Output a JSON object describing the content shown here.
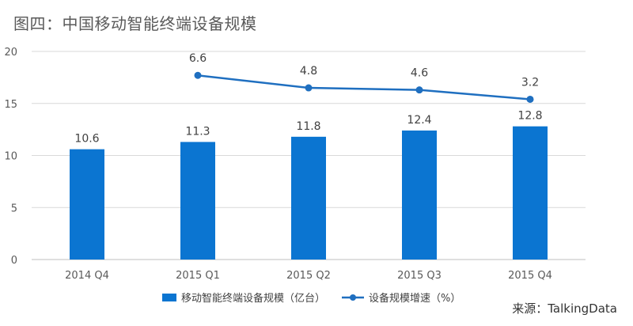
{
  "title": "图四：中国移动智能终端设备规模",
  "source": "来源：TalkingData",
  "colors": {
    "bar": "#0B75D1",
    "line": "#1F6FC0",
    "grid": "#D9D9D9",
    "axis": "#BFBFBF",
    "text": "#595959"
  },
  "chart_data": {
    "type": "bar",
    "categories": [
      "2014 Q4",
      "2015 Q1",
      "2015 Q2",
      "2015 Q3",
      "2015 Q4"
    ],
    "series": [
      {
        "name": "移动智能终端设备规模（亿台）",
        "type": "bar",
        "values": [
          10.6,
          11.3,
          11.8,
          12.4,
          12.8
        ],
        "labels": [
          "10.6",
          "11.3",
          "11.8",
          "12.4",
          "12.8"
        ]
      },
      {
        "name": "设备规模增速（%）",
        "type": "line",
        "values": [
          null,
          6.6,
          4.8,
          4.6,
          3.2
        ],
        "labels": [
          "",
          "6.6",
          "4.8",
          "4.6",
          "3.2"
        ],
        "plotted_on_left_axis": [
          null,
          17.7,
          16.5,
          16.3,
          15.4
        ]
      }
    ],
    "y_ticks": [
      "0",
      "5",
      "10",
      "15",
      "20"
    ],
    "ylim": [
      0,
      20
    ],
    "grid": true,
    "legend": "bottom-center"
  }
}
